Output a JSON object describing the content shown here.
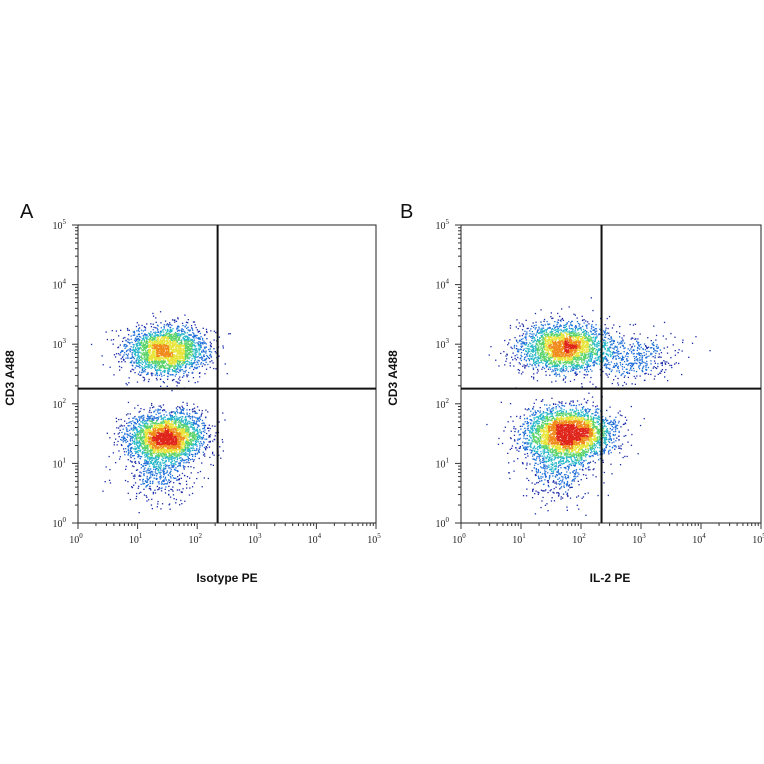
{
  "chart_data": [
    {
      "type": "scatter",
      "panel_label": "A",
      "xlabel": "Isotype PE",
      "ylabel": "CD3 A488",
      "x_scale": "log",
      "y_scale": "log",
      "xlim": [
        1,
        100000
      ],
      "ylim": [
        1,
        100000
      ],
      "x_ticks": [
        "10^0",
        "10^1",
        "10^2",
        "10^3",
        "10^4",
        "10^5"
      ],
      "y_ticks": [
        "10^0",
        "10^1",
        "10^2",
        "10^3",
        "10^4",
        "10^5"
      ],
      "quadrant_gate": {
        "x": 220,
        "y": 180
      },
      "colormap": [
        "#1a2aa8",
        "#1f6fd8",
        "#26b7c9",
        "#5cd36b",
        "#e8e43a",
        "#f08a1c",
        "#e0261c"
      ],
      "grid": false,
      "populations": [
        {
          "name": "",
          "center": [
            30,
            800
          ],
          "spread": [
            0.34,
            0.2
          ],
          "count": 2400
        },
        {
          "name": "",
          "center": [
            30,
            28
          ],
          "spread": [
            0.32,
            0.2
          ],
          "count": 2800
        },
        {
          "name": "",
          "center": [
            22,
            8
          ],
          "spread": [
            0.3,
            0.28
          ],
          "count": 500
        }
      ]
    },
    {
      "type": "scatter",
      "panel_label": "B",
      "xlabel": "IL-2 PE",
      "ylabel": "CD3 A488",
      "x_scale": "log",
      "y_scale": "log",
      "xlim": [
        1,
        100000
      ],
      "ylim": [
        1,
        100000
      ],
      "x_ticks": [
        "10^0",
        "10^1",
        "10^2",
        "10^3",
        "10^4",
        "10^5"
      ],
      "y_ticks": [
        "10^0",
        "10^1",
        "10^2",
        "10^3",
        "10^4",
        "10^5"
      ],
      "quadrant_gate": {
        "x": 220,
        "y": 180
      },
      "colormap": [
        "#1a2aa8",
        "#1f6fd8",
        "#26b7c9",
        "#5cd36b",
        "#e8e43a",
        "#f08a1c",
        "#e0261c"
      ],
      "grid": false,
      "populations": [
        {
          "name": "",
          "center": [
            50,
            900
          ],
          "spread": [
            0.36,
            0.2
          ],
          "count": 2400
        },
        {
          "name": "",
          "center": [
            60,
            32
          ],
          "spread": [
            0.36,
            0.22
          ],
          "count": 3200
        },
        {
          "name": "",
          "center": [
            700,
            600
          ],
          "spread": [
            0.38,
            0.2
          ],
          "count": 450
        },
        {
          "name": "",
          "center": [
            40,
            8
          ],
          "spread": [
            0.3,
            0.28
          ],
          "count": 450
        }
      ]
    }
  ]
}
